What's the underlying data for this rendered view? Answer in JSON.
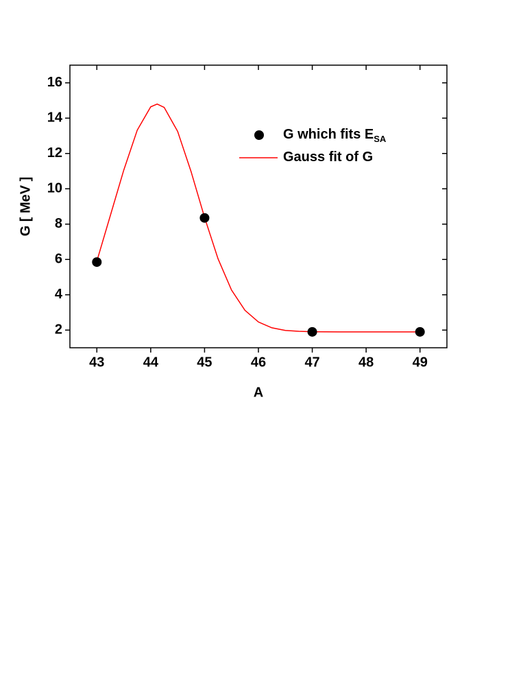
{
  "chart_data": {
    "type": "scatter-line",
    "x_label": "A",
    "y_label": "G [ MeV ]",
    "xlim": [
      42.5,
      49.5
    ],
    "xticks": [
      43,
      44,
      45,
      46,
      47,
      48,
      49
    ],
    "ylim": [
      1,
      17
    ],
    "yticks": [
      2,
      4,
      6,
      8,
      10,
      12,
      14,
      16
    ],
    "series": [
      {
        "name": "G which fits E",
        "name_sub": "SA",
        "type": "scatter",
        "color": "#000000",
        "x": [
          43,
          45,
          47,
          49
        ],
        "values": [
          5.85,
          8.35,
          1.9,
          1.9
        ]
      },
      {
        "name": "Gauss fit of G",
        "type": "line",
        "color": "#ff0000",
        "x": [
          43,
          43.25,
          43.5,
          43.75,
          44,
          44.12,
          44.25,
          44.5,
          44.75,
          45,
          45.25,
          45.5,
          45.75,
          46,
          46.25,
          46.5,
          46.75,
          47,
          47.5,
          48,
          48.5,
          49
        ],
        "values": [
          5.9,
          8.48,
          11.06,
          13.32,
          14.64,
          14.8,
          14.61,
          13.25,
          10.97,
          8.38,
          6.04,
          4.27,
          3.12,
          2.46,
          2.13,
          1.98,
          1.93,
          1.91,
          1.9,
          1.9,
          1.9,
          1.9
        ]
      }
    ]
  }
}
